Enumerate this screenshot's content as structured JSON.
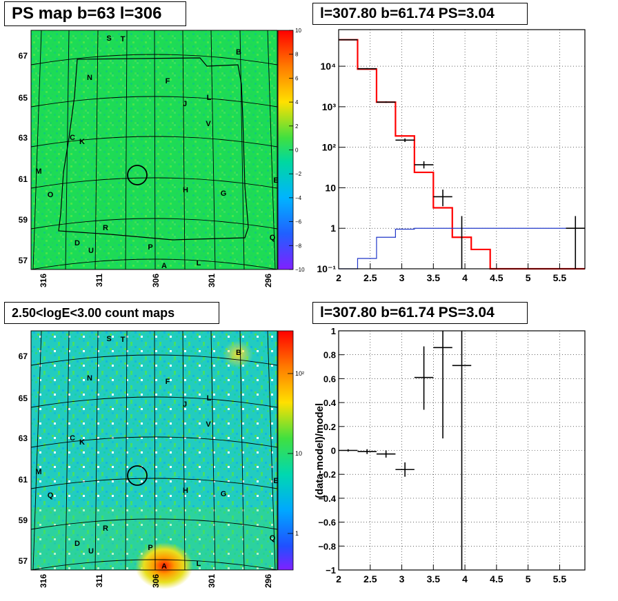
{
  "panels": {
    "tl": {
      "title": "PS map b=63 l=306",
      "lat_labels": [
        "67",
        "65",
        "63",
        "61",
        "59",
        "57"
      ],
      "lon_labels": [
        "316",
        "311",
        "306",
        "301",
        "296"
      ],
      "scale_labels": [
        "10",
        "8",
        "6",
        "4",
        "2",
        "0",
        "−2",
        "−4",
        "−6",
        "−8",
        "−10"
      ],
      "sources": [
        "S",
        "T",
        "B",
        "N",
        "F",
        "L",
        "J",
        "V",
        "C",
        "K",
        "M",
        "E",
        "O",
        "H",
        "G",
        "R",
        "D",
        "U",
        "P",
        "Q",
        "A",
        "L"
      ]
    },
    "tr": {
      "title": "l=307.80 b=61.74 PS=3.04",
      "x_ticks": [
        "2",
        "2.5",
        "3",
        "3.5",
        "4",
        "4.5",
        "5",
        "5.5"
      ],
      "y_ticks": [
        "10⁴",
        "10³",
        "10²",
        "10",
        "1",
        "10⁻¹"
      ]
    },
    "bl": {
      "title": "2.50<logE<3.00 count maps",
      "lat_labels": [
        "67",
        "65",
        "63",
        "61",
        "59",
        "57"
      ],
      "lon_labels": [
        "316",
        "311",
        "306",
        "301",
        "296"
      ],
      "scale_labels": [
        "10²",
        "10",
        "1"
      ],
      "sources": [
        "S",
        "T",
        "B",
        "N",
        "F",
        "L",
        "J",
        "V",
        "C",
        "K",
        "M",
        "E",
        "Q",
        "H",
        "G",
        "R",
        "D",
        "U",
        "P",
        "Q",
        "A",
        "L"
      ]
    },
    "br": {
      "title": "l=307.80 b=61.74 PS=3.04",
      "ylabel": "(data-model)/model",
      "x_ticks": [
        "2",
        "2.5",
        "3",
        "3.5",
        "4",
        "4.5",
        "5",
        "5.5"
      ],
      "y_ticks": [
        "1",
        "0.8",
        "0.6",
        "0.4",
        "0.2",
        "0",
        "−0.2",
        "−0.4",
        "−0.6",
        "−0.8",
        "−1"
      ]
    }
  },
  "chart_data": [
    {
      "type": "heatmap",
      "title": "PS map b=63 l=306",
      "xlabel": "",
      "ylabel": "",
      "x_ticks": [
        316,
        311,
        306,
        301,
        296
      ],
      "y_ticks": [
        67,
        65,
        63,
        61,
        59,
        57
      ],
      "colorscale": {
        "min": -10,
        "max": 10,
        "ticks": [
          10,
          8,
          6,
          4,
          2,
          0,
          -2,
          -4,
          -6,
          -8,
          -10
        ]
      },
      "marked_position": {
        "l": 307.8,
        "b": 61.3
      },
      "labels": [
        "S",
        "T",
        "B",
        "N",
        "F",
        "L",
        "J",
        "V",
        "C",
        "K",
        "M",
        "E",
        "O",
        "H",
        "G",
        "R",
        "D",
        "U",
        "P",
        "Q",
        "A",
        "L"
      ]
    },
    {
      "type": "line",
      "title": "l=307.80 b=61.74 PS=3.04",
      "xlabel": "",
      "ylabel": "",
      "log_y": true,
      "xlim": [
        2,
        5.9
      ],
      "ylim": [
        0.1,
        80000
      ],
      "x_edges": [
        2.0,
        2.3,
        2.6,
        2.9,
        3.2,
        3.5,
        3.8,
        4.1,
        4.4,
        5.9
      ],
      "series": [
        {
          "color": "#ff0000",
          "values": [
            45000,
            8500,
            1300,
            190,
            24,
            3.2,
            0.6,
            0.3,
            0.1
          ]
        },
        {
          "color": "#1f35c8",
          "values": [
            0.1,
            0.18,
            0.6,
            0.95,
            1.0,
            1.0,
            1.0,
            1.0,
            1.0
          ]
        },
        {
          "type": "errorbars",
          "color": "#000000",
          "points": [
            {
              "x": 2.15,
              "y": 45000,
              "xerr": 0.15,
              "ylo": 44000,
              "yhi": 46000
            },
            {
              "x": 2.45,
              "y": 8700,
              "xerr": 0.15,
              "ylo": 8400,
              "yhi": 9000
            },
            {
              "x": 2.75,
              "y": 1300,
              "xerr": 0.15,
              "ylo": 1250,
              "yhi": 1350
            },
            {
              "x": 3.05,
              "y": 150,
              "xerr": 0.15,
              "ylo": 135,
              "yhi": 165
            },
            {
              "x": 3.35,
              "y": 37,
              "xerr": 0.15,
              "ylo": 30,
              "yhi": 45
            },
            {
              "x": 3.65,
              "y": 6,
              "xerr": 0.15,
              "ylo": 3.5,
              "yhi": 9
            },
            {
              "x": 3.95,
              "y": 0.1,
              "xerr": 0.0,
              "ylo": 0.1,
              "yhi": 2.0
            },
            {
              "x": 5.75,
              "y": 1.0,
              "xerr": 0.15,
              "ylo": 0.1,
              "yhi": 2.0
            }
          ]
        }
      ]
    },
    {
      "type": "heatmap",
      "title": "2.50<logE<3.00 count maps",
      "xlabel": "",
      "ylabel": "",
      "x_ticks": [
        316,
        311,
        306,
        301,
        296
      ],
      "y_ticks": [
        67,
        65,
        63,
        61,
        59,
        57
      ],
      "colorscale": {
        "log": true,
        "ticks": [
          "10²",
          "10",
          "1"
        ]
      },
      "marked_position": {
        "l": 307.8,
        "b": 61.3
      },
      "labels": [
        "S",
        "T",
        "B",
        "N",
        "F",
        "L",
        "J",
        "V",
        "C",
        "K",
        "M",
        "E",
        "Q",
        "H",
        "G",
        "R",
        "D",
        "U",
        "P",
        "Q",
        "A",
        "L"
      ]
    },
    {
      "type": "scatter",
      "title": "l=307.80 b=61.74 PS=3.04",
      "xlabel": "",
      "ylabel": "(data-model)/model",
      "xlim": [
        2,
        5.9
      ],
      "ylim": [
        -1,
        1
      ],
      "grid": true,
      "points": [
        {
          "x": 2.15,
          "y": 0.0,
          "xerr": 0.15,
          "ylo": -0.01,
          "yhi": 0.01
        },
        {
          "x": 2.45,
          "y": -0.01,
          "xerr": 0.15,
          "ylo": -0.03,
          "yhi": 0.01
        },
        {
          "x": 2.75,
          "y": -0.03,
          "xerr": 0.15,
          "ylo": -0.06,
          "yhi": 0.0
        },
        {
          "x": 3.05,
          "y": -0.16,
          "xerr": 0.15,
          "ylo": -0.22,
          "yhi": -0.1
        },
        {
          "x": 3.35,
          "y": 0.61,
          "xerr": 0.15,
          "ylo": 0.34,
          "yhi": 0.87
        },
        {
          "x": 3.65,
          "y": 0.86,
          "xerr": 0.15,
          "ylo": 0.1,
          "yhi": 1.0
        },
        {
          "x": 3.95,
          "y": 0.71,
          "xerr": 0.15,
          "ylo": -1.0,
          "yhi": 1.0
        }
      ]
    }
  ]
}
